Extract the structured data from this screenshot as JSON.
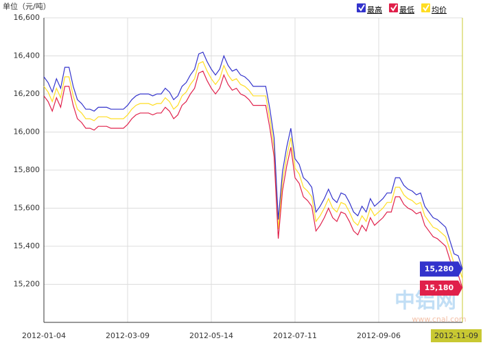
{
  "chart_data": {
    "type": "line",
    "title": "单位（元/吨）",
    "watermark": "中铝网",
    "watermark_url": "www.cnal.com",
    "categories": [
      "2012-01-04",
      null,
      null,
      null,
      null,
      null,
      null,
      null,
      null,
      null,
      null,
      null,
      null,
      null,
      null,
      null,
      null,
      null,
      null,
      null,
      "2012-03-09",
      null,
      null,
      null,
      null,
      null,
      null,
      null,
      null,
      null,
      null,
      null,
      null,
      null,
      null,
      null,
      null,
      null,
      null,
      null,
      "2012-05-14",
      null,
      null,
      null,
      null,
      null,
      null,
      null,
      null,
      null,
      null,
      null,
      null,
      null,
      null,
      null,
      null,
      null,
      null,
      null,
      "2012-07-11",
      null,
      null,
      null,
      null,
      null,
      null,
      null,
      null,
      null,
      null,
      null,
      null,
      null,
      null,
      null,
      null,
      null,
      null,
      null,
      "2012-09-06",
      null,
      null,
      null,
      null,
      null,
      null,
      null,
      null,
      null,
      null,
      null,
      null,
      null,
      null,
      null,
      null,
      null,
      null,
      null,
      "2012-11-09"
    ],
    "ylim": [
      15000,
      16600
    ],
    "yticks": [
      {
        "value": 15200,
        "label": "15,200"
      },
      {
        "value": 15400,
        "label": "15,400"
      },
      {
        "value": 15600,
        "label": "15,600"
      },
      {
        "value": 15800,
        "label": "15,800"
      },
      {
        "value": 16000,
        "label": "16,000"
      },
      {
        "value": 16200,
        "label": "16,200"
      },
      {
        "value": 16400,
        "label": "16,400"
      },
      {
        "value": 16600,
        "label": "16,600"
      }
    ],
    "grid": true,
    "series": [
      {
        "name": "最高",
        "color": "#3333cc",
        "values": [
          16290,
          16260,
          16210,
          16280,
          16230,
          16340,
          16340,
          16240,
          16170,
          16150,
          16120,
          16120,
          16110,
          16130,
          16130,
          16130,
          16120,
          16120,
          16120,
          16120,
          16140,
          16170,
          16190,
          16200,
          16200,
          16200,
          16190,
          16200,
          16200,
          16230,
          16210,
          16170,
          16190,
          16240,
          16260,
          16300,
          16330,
          16410,
          16420,
          16370,
          16330,
          16300,
          16330,
          16400,
          16350,
          16320,
          16330,
          16300,
          16290,
          16270,
          16240,
          16240,
          16240,
          16240,
          16120,
          15970,
          15540,
          15790,
          15920,
          16020,
          15860,
          15830,
          15760,
          15740,
          15710,
          15580,
          15610,
          15650,
          15700,
          15650,
          15630,
          15680,
          15670,
          15630,
          15580,
          15560,
          15610,
          15580,
          15650,
          15610,
          15630,
          15650,
          15680,
          15680,
          15760,
          15760,
          15720,
          15700,
          15690,
          15670,
          15680,
          15610,
          15580,
          15550,
          15540,
          15520,
          15500,
          15430,
          15360,
          15350,
          15280
        ],
        "value_labels": [
          null,
          null,
          null,
          null,
          null,
          null,
          null,
          null,
          null,
          null,
          null,
          null,
          null,
          null,
          null,
          null,
          null,
          null,
          null,
          null,
          null,
          null,
          null,
          null,
          null,
          null,
          null,
          null,
          null,
          null,
          null,
          null,
          null,
          null,
          null,
          null,
          null,
          null,
          null,
          null,
          null,
          null,
          null,
          null,
          null,
          null,
          null,
          null,
          null,
          null,
          null,
          null,
          null,
          null,
          null,
          null,
          null,
          null,
          null,
          null,
          null,
          null,
          null,
          null,
          null,
          null,
          null,
          null,
          null,
          null,
          null,
          null,
          null,
          null,
          null,
          null,
          null,
          null,
          null,
          null,
          null,
          null,
          null,
          null,
          null,
          null,
          null,
          null,
          null,
          null,
          null,
          null,
          null,
          null,
          null,
          null,
          null,
          null,
          null,
          null,
          "15,280"
        ]
      },
      {
        "name": "最低",
        "color": "#e0204a",
        "values": [
          16190,
          16160,
          16110,
          16180,
          16130,
          16240,
          16240,
          16140,
          16070,
          16050,
          16020,
          16020,
          16010,
          16030,
          16030,
          16030,
          16020,
          16020,
          16020,
          16020,
          16040,
          16070,
          16090,
          16100,
          16100,
          16100,
          16090,
          16100,
          16100,
          16130,
          16110,
          16070,
          16090,
          16140,
          16160,
          16200,
          16230,
          16310,
          16320,
          16270,
          16230,
          16200,
          16230,
          16300,
          16250,
          16220,
          16230,
          16200,
          16190,
          16170,
          16140,
          16140,
          16140,
          16140,
          16020,
          15870,
          15440,
          15690,
          15820,
          15920,
          15760,
          15730,
          15660,
          15640,
          15610,
          15480,
          15510,
          15550,
          15600,
          15550,
          15530,
          15580,
          15570,
          15530,
          15480,
          15460,
          15510,
          15480,
          15550,
          15510,
          15530,
          15550,
          15580,
          15580,
          15660,
          15660,
          15620,
          15600,
          15590,
          15570,
          15580,
          15510,
          15480,
          15450,
          15440,
          15420,
          15400,
          15330,
          15260,
          15250,
          15180
        ],
        "value_labels": [
          null,
          null,
          null,
          null,
          null,
          null,
          null,
          null,
          null,
          null,
          null,
          null,
          null,
          null,
          null,
          null,
          null,
          null,
          null,
          null,
          null,
          null,
          null,
          null,
          null,
          null,
          null,
          null,
          null,
          null,
          null,
          null,
          null,
          null,
          null,
          null,
          null,
          null,
          null,
          null,
          null,
          null,
          null,
          null,
          null,
          null,
          null,
          null,
          null,
          null,
          null,
          null,
          null,
          null,
          null,
          null,
          null,
          null,
          null,
          null,
          null,
          null,
          null,
          null,
          null,
          null,
          null,
          null,
          null,
          null,
          null,
          null,
          null,
          null,
          null,
          null,
          null,
          null,
          null,
          null,
          null,
          null,
          null,
          null,
          null,
          null,
          null,
          null,
          null,
          null,
          null,
          null,
          null,
          null,
          null,
          null,
          null,
          null,
          null,
          null,
          "15,180"
        ]
      },
      {
        "name": "均价",
        "color": "#ffdd22",
        "values": [
          16240,
          16210,
          16160,
          16230,
          16180,
          16290,
          16290,
          16190,
          16120,
          16100,
          16070,
          16070,
          16060,
          16080,
          16080,
          16080,
          16070,
          16070,
          16070,
          16070,
          16090,
          16120,
          16140,
          16150,
          16150,
          16150,
          16140,
          16150,
          16150,
          16180,
          16160,
          16120,
          16140,
          16190,
          16210,
          16250,
          16280,
          16360,
          16370,
          16320,
          16280,
          16250,
          16280,
          16350,
          16300,
          16270,
          16280,
          16250,
          16240,
          16220,
          16190,
          16190,
          16190,
          16190,
          16070,
          15920,
          15490,
          15740,
          15870,
          15970,
          15810,
          15780,
          15710,
          15690,
          15660,
          15530,
          15560,
          15600,
          15650,
          15600,
          15580,
          15630,
          15620,
          15580,
          15530,
          15510,
          15560,
          15530,
          15600,
          15560,
          15580,
          15600,
          15630,
          15630,
          15710,
          15710,
          15670,
          15650,
          15640,
          15620,
          15630,
          15560,
          15530,
          15500,
          15490,
          15470,
          15450,
          15380,
          15310,
          15300,
          15230
        ]
      }
    ]
  }
}
